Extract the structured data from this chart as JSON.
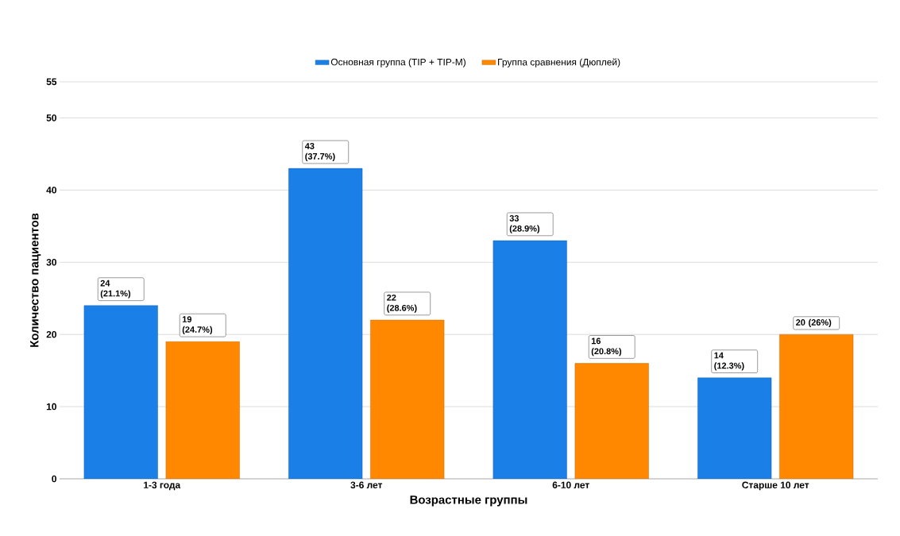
{
  "chart_data": {
    "type": "bar",
    "xlabel": "Возрастные группы",
    "ylabel": "Количество пациентов",
    "categories": [
      "1-3 года",
      "3-6 лет",
      "6-10 лет",
      "Старше 10 лет"
    ],
    "series": [
      {
        "name": "Основная группа (TIP + TIP-M)",
        "color": "#1a7fe6",
        "values": [
          24,
          43,
          33,
          14
        ],
        "value_labels": [
          "24 (21.1%)",
          "43 (37.7%)",
          "33 (28.9%)",
          "14 (12.3%)"
        ]
      },
      {
        "name": "Группа сравнения (Дюплей)",
        "color": "#ff8800",
        "values": [
          19,
          22,
          16,
          20
        ],
        "value_labels": [
          "19 (24.7%)",
          "22 (28.6%)",
          "16 (20.8%)",
          "20 (26%)"
        ]
      }
    ],
    "ylim": [
      0,
      55
    ],
    "yticks": [
      0,
      10,
      20,
      30,
      40,
      50,
      55
    ],
    "grid": "y",
    "legend": "top"
  }
}
